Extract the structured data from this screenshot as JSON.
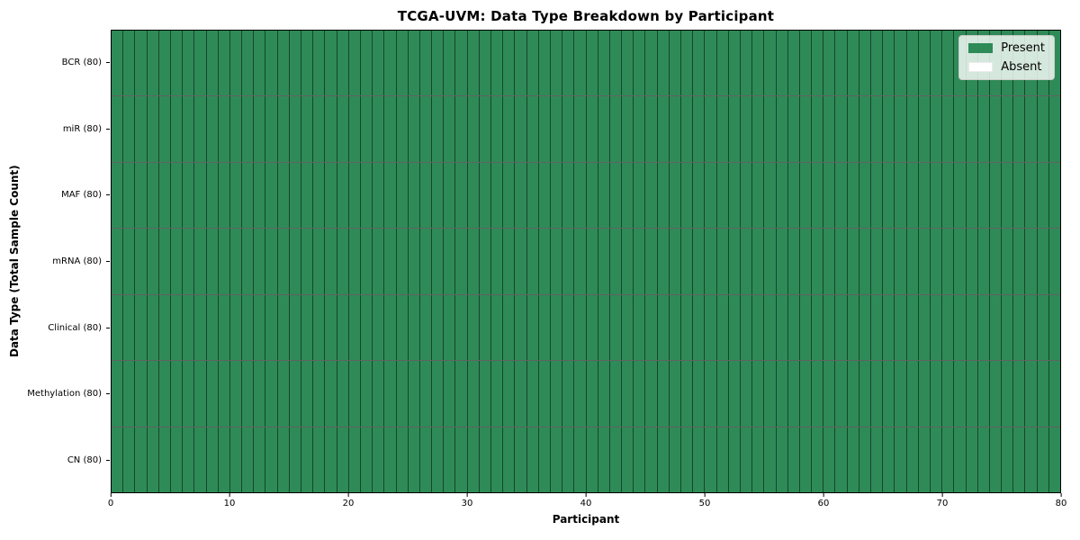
{
  "chart_data": {
    "type": "heatmap",
    "title": "TCGA-UVM: Data Type Breakdown by Participant",
    "xlabel": "Participant",
    "ylabel": "Data Type (Total Sample Count)",
    "x_range": [
      0,
      80
    ],
    "x_ticks": [
      0,
      10,
      20,
      30,
      40,
      50,
      60,
      70,
      80
    ],
    "n_participants": 80,
    "rows": [
      {
        "label": "BCR (80)",
        "data_type": "BCR",
        "total_samples": 80,
        "present_participants": 80,
        "absent_participants": 0
      },
      {
        "label": "miR (80)",
        "data_type": "miR",
        "total_samples": 80,
        "present_participants": 80,
        "absent_participants": 0
      },
      {
        "label": "MAF (80)",
        "data_type": "MAF",
        "total_samples": 80,
        "present_participants": 80,
        "absent_participants": 0
      },
      {
        "label": "mRNA (80)",
        "data_type": "mRNA",
        "total_samples": 80,
        "present_participants": 80,
        "absent_participants": 0
      },
      {
        "label": "Clinical (80)",
        "data_type": "Clinical",
        "total_samples": 80,
        "present_participants": 80,
        "absent_participants": 0
      },
      {
        "label": "Methylation (80)",
        "data_type": "Methylation",
        "total_samples": 80,
        "present_participants": 80,
        "absent_participants": 0
      },
      {
        "label": "CN (80)",
        "data_type": "CN",
        "total_samples": 80,
        "present_participants": 80,
        "absent_participants": 0
      }
    ],
    "legend": {
      "position": "upper right",
      "entries": [
        {
          "label": "Present",
          "color": "#2e8b57"
        },
        {
          "label": "Absent",
          "color": "#ffffff"
        }
      ]
    },
    "colors": {
      "present": "#2e8b57",
      "absent": "#ffffff",
      "cell_border": "rgba(0,0,0,0.5)",
      "spine": "#000000"
    },
    "grid": "cell-borders",
    "layout": {
      "legend_position": "upper-right",
      "all_cells_present": true
    }
  }
}
